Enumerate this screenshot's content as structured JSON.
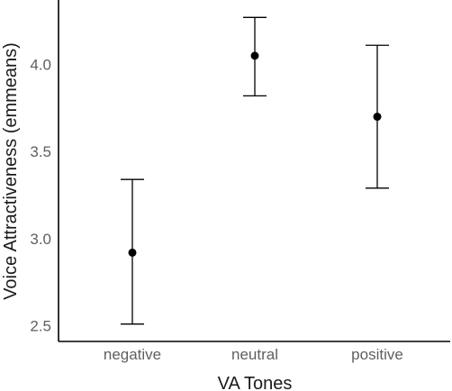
{
  "chart_data": {
    "type": "scatter",
    "xlabel": "VA Tones",
    "ylabel": "Voice Attractiveness (emmeans)",
    "categories": [
      "negative",
      "neutral",
      "positive"
    ],
    "points": [
      {
        "category": "negative",
        "mean": 2.92,
        "lower": 2.51,
        "upper": 3.34
      },
      {
        "category": "neutral",
        "mean": 4.05,
        "lower": 3.82,
        "upper": 4.27
      },
      {
        "category": "positive",
        "mean": 3.7,
        "lower": 3.29,
        "upper": 4.11
      }
    ],
    "yticks": [
      2.5,
      3.0,
      3.5,
      4.0
    ],
    "ytick_labels": [
      "2.5",
      "3.0",
      "3.5",
      "4.0"
    ],
    "ylim": [
      2.41,
      4.37
    ],
    "grid": false,
    "error_bars": true,
    "colors": {
      "points": "#000000",
      "tick_labels": "#5f5f5f",
      "axis": "#000000"
    }
  }
}
